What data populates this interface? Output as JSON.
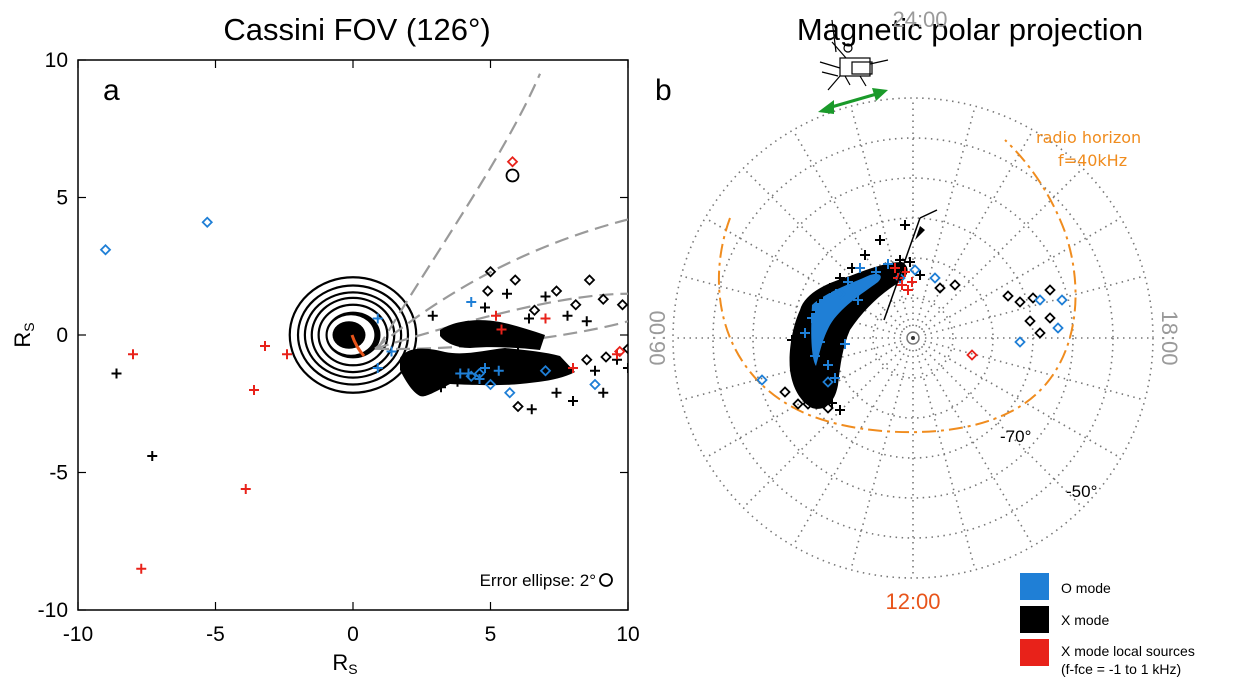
{
  "colors": {
    "o_mode": "#1f7fd6",
    "x_mode": "#000000",
    "x_local": "#e8221a",
    "orange": "#f08c1e",
    "green": "#1a9a2a",
    "grey": "#9a9a9a",
    "lt_red": "#e8541a"
  },
  "chart_data": [
    {
      "panel": "a",
      "type": "scatter",
      "title": "Cassini FOV (126°)",
      "xlabel": "R",
      "xlabel_sub": "S",
      "ylabel": "R",
      "ylabel_sub": "S",
      "xlim": [
        -10,
        10
      ],
      "ylim": [
        -10,
        10
      ],
      "xticks": [
        -10,
        -5,
        0,
        5,
        10
      ],
      "yticks": [
        -10,
        -5,
        0,
        5,
        10
      ],
      "annotation": "Error ellipse: 2°",
      "fov_lines": [
        [
          [
            0.9,
            -0.5
          ],
          [
            3.0,
            3.0
          ],
          [
            5.5,
            6.5
          ],
          [
            6.8,
            9.5
          ]
        ],
        [
          [
            0.8,
            -0.5
          ],
          [
            3.5,
            1.7
          ],
          [
            6.5,
            3.3
          ],
          [
            10.0,
            4.2
          ]
        ],
        [
          [
            0.8,
            -0.5
          ],
          [
            5.0,
            0.8
          ],
          [
            8.0,
            1.5
          ],
          [
            10.0,
            1.5
          ]
        ],
        [
          [
            0.8,
            -0.5
          ],
          [
            5.0,
            -0.6
          ],
          [
            9.0,
            0.2
          ],
          [
            10.0,
            0.5
          ]
        ]
      ],
      "series": [
        {
          "name": "O mode",
          "marker": "diamond",
          "points": [
            [
              -9.0,
              3.1
            ],
            [
              -5.3,
              4.1
            ],
            [
              4.3,
              -1.5
            ],
            [
              5.0,
              -1.8
            ],
            [
              5.7,
              -2.1
            ],
            [
              7.0,
              -1.3
            ],
            [
              8.8,
              -1.8
            ],
            [
              4.6,
              -1.4
            ]
          ]
        },
        {
          "name": "O mode",
          "marker": "plus",
          "points": [
            [
              4.3,
              1.2
            ],
            [
              3.9,
              -1.4
            ],
            [
              4.8,
              -1.2
            ],
            [
              5.3,
              -1.3
            ],
            [
              1.4,
              -0.6
            ],
            [
              0.9,
              -1.2
            ],
            [
              0.9,
              0.6
            ],
            [
              4.6,
              -1.6
            ],
            [
              4.2,
              -1.4
            ]
          ]
        },
        {
          "name": "X mode",
          "marker": "plus",
          "points": [
            [
              -8.6,
              -1.4
            ],
            [
              -7.3,
              -4.4
            ],
            [
              6.5,
              -2.7
            ],
            [
              7.4,
              -2.1
            ],
            [
              8.0,
              -2.4
            ],
            [
              8.8,
              -1.3
            ],
            [
              9.1,
              -2.1
            ],
            [
              9.6,
              -0.9
            ],
            [
              10.0,
              -1.2
            ],
            [
              2.9,
              0.7
            ],
            [
              4.8,
              1.0
            ],
            [
              5.6,
              1.5
            ],
            [
              6.4,
              0.6
            ],
            [
              7.0,
              1.4
            ],
            [
              7.8,
              0.7
            ],
            [
              8.5,
              0.5
            ],
            [
              6.0,
              -0.4
            ],
            [
              3.8,
              -1.7
            ],
            [
              3.2,
              -1.9
            ]
          ]
        },
        {
          "name": "X mode",
          "marker": "diamond",
          "points": [
            [
              4.9,
              1.6
            ],
            [
              5.0,
              2.3
            ],
            [
              5.9,
              2.0
            ],
            [
              6.6,
              0.9
            ],
            [
              7.4,
              1.6
            ],
            [
              8.1,
              1.1
            ],
            [
              8.6,
              2.0
            ],
            [
              9.1,
              1.3
            ],
            [
              9.8,
              1.1
            ],
            [
              6.0,
              -2.6
            ],
            [
              8.5,
              -0.9
            ],
            [
              9.2,
              -0.8
            ],
            [
              10.0,
              -0.5
            ]
          ]
        },
        {
          "name": "X mode local sources",
          "marker": "plus",
          "points": [
            [
              -8.0,
              -0.7
            ],
            [
              -7.7,
              -8.5
            ],
            [
              -3.9,
              -5.6
            ],
            [
              -3.6,
              -2.0
            ],
            [
              -3.2,
              -0.4
            ],
            [
              -2.4,
              -0.7
            ],
            [
              5.2,
              0.7
            ],
            [
              5.4,
              0.2
            ],
            [
              7.0,
              0.6
            ],
            [
              8.0,
              -1.2
            ],
            [
              9.6,
              -0.7
            ]
          ]
        },
        {
          "name": "X mode local sources",
          "marker": "diamond",
          "points": [
            [
              5.8,
              6.3
            ],
            [
              9.7,
              -0.6
            ]
          ]
        }
      ],
      "error_circle": [
        5.8,
        5.8
      ]
    },
    {
      "panel": "b",
      "type": "scatter",
      "title": "Magnetic polar projection",
      "lt_labels": {
        "top": "24:00",
        "bottom": "12:00",
        "left": "06:00",
        "right": "18:00"
      },
      "lat_labels": [
        "-70°",
        "-50°"
      ],
      "horizon_label_1": "radio horizon",
      "horizon_label_2": "f=40kHz",
      "legend": [
        {
          "label": "O mode",
          "color": "#1f7fd6"
        },
        {
          "label": "X mode",
          "color": "#000000"
        },
        {
          "label": "X mode local sources",
          "color": "#e8221a"
        }
      ],
      "legend_note": "(f-fce = -1 to 1 kHz)",
      "points_o_diamond": [
        [
          1040,
          300
        ],
        [
          1062,
          300
        ],
        [
          1058,
          328
        ],
        [
          1020,
          342
        ],
        [
          828,
          382
        ],
        [
          762,
          380
        ],
        [
          935,
          278
        ],
        [
          915,
          270
        ],
        [
          900,
          278
        ],
        [
          840,
          294
        ]
      ],
      "points_x_diamond": [
        [
          1050,
          290
        ],
        [
          1033,
          298
        ],
        [
          1020,
          302
        ],
        [
          1008,
          296
        ],
        [
          1050,
          318
        ],
        [
          1040,
          333
        ],
        [
          1030,
          321
        ],
        [
          955,
          285
        ],
        [
          798,
          404
        ],
        [
          815,
          398
        ],
        [
          808,
          404
        ],
        [
          828,
          408
        ],
        [
          785,
          392
        ],
        [
          940,
          288
        ]
      ],
      "points_x_plus": [
        [
          905,
          225
        ],
        [
          880,
          240
        ],
        [
          865,
          255
        ],
        [
          852,
          268
        ],
        [
          840,
          278
        ],
        [
          830,
          288
        ],
        [
          818,
          298
        ],
        [
          810,
          312
        ],
        [
          800,
          325
        ],
        [
          792,
          340
        ],
        [
          795,
          355
        ],
        [
          805,
          370
        ],
        [
          812,
          385
        ],
        [
          822,
          395
        ],
        [
          832,
          403
        ],
        [
          840,
          410
        ],
        [
          910,
          262
        ],
        [
          900,
          260
        ],
        [
          920,
          275
        ]
      ],
      "points_o_plus": [
        [
          860,
          268
        ],
        [
          848,
          282
        ],
        [
          836,
          294
        ],
        [
          822,
          306
        ],
        [
          812,
          318
        ],
        [
          805,
          333
        ],
        [
          820,
          342
        ],
        [
          815,
          356
        ],
        [
          828,
          365
        ],
        [
          835,
          378
        ],
        [
          845,
          344
        ],
        [
          858,
          300
        ],
        [
          876,
          272
        ],
        [
          888,
          264
        ]
      ],
      "points_x_local": [
        [
          898,
          278
        ],
        [
          902,
          285
        ],
        [
          908,
          290
        ],
        [
          912,
          282
        ],
        [
          895,
          268
        ],
        [
          905,
          272
        ],
        [
          972,
          355
        ]
      ]
    }
  ]
}
